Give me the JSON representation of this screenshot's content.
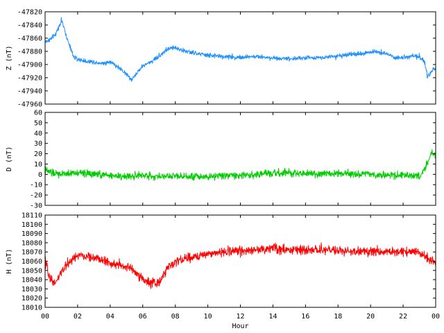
{
  "chart_data": [
    {
      "type": "line",
      "panel": "Z",
      "ylabel": "Z (nT)",
      "xlabel": "",
      "ylim": [
        -47960,
        -47820
      ],
      "yticks": [
        -47820,
        -47840,
        -47860,
        -47880,
        -47900,
        -47920,
        -47940,
        -47960
      ],
      "xlim": [
        0,
        24
      ],
      "xticks": [
        "00",
        "02",
        "04",
        "06",
        "08",
        "10",
        "12",
        "14",
        "16",
        "18",
        "20",
        "22",
        "00"
      ],
      "grid": false,
      "series": [
        {
          "color": "#1e90ff",
          "x": [
            0,
            0.3,
            0.6,
            0.9,
            1.0,
            1.2,
            1.5,
            1.8,
            2.0,
            2.5,
            3.0,
            3.5,
            4.0,
            4.5,
            5.0,
            5.3,
            5.5,
            5.8,
            6.0,
            6.5,
            7.0,
            7.5,
            8.0,
            8.5,
            9.0,
            9.5,
            10.0,
            11.0,
            12.0,
            13.0,
            14.0,
            15.0,
            16.0,
            17.0,
            18.0,
            19.0,
            20.0,
            20.5,
            21.0,
            21.5,
            22.0,
            22.5,
            23.0,
            23.3,
            23.5,
            23.7,
            24.0
          ],
          "values": [
            -47866,
            -47862,
            -47856,
            -47840,
            -47832,
            -47848,
            -47872,
            -47890,
            -47892,
            -47895,
            -47896,
            -47898,
            -47896,
            -47904,
            -47914,
            -47924,
            -47917,
            -47908,
            -47902,
            -47896,
            -47887,
            -47877,
            -47874,
            -47879,
            -47882,
            -47884,
            -47886,
            -47888,
            -47889,
            -47888,
            -47890,
            -47891,
            -47890,
            -47889,
            -47887,
            -47885,
            -47881,
            -47880,
            -47884,
            -47890,
            -47889,
            -47887,
            -47888,
            -47895,
            -47920,
            -47912,
            -47905
          ]
        }
      ]
    },
    {
      "type": "line",
      "panel": "D",
      "ylabel": "D (nT)",
      "xlabel": "",
      "ylim": [
        -30,
        60
      ],
      "yticks": [
        60,
        50,
        40,
        30,
        20,
        10,
        0,
        -10,
        -20,
        -30
      ],
      "xlim": [
        0,
        24
      ],
      "xticks": [
        "00",
        "02",
        "04",
        "06",
        "08",
        "10",
        "12",
        "14",
        "16",
        "18",
        "20",
        "22",
        "00"
      ],
      "grid": false,
      "series": [
        {
          "color": "#00cc00",
          "x": [
            0,
            0.5,
            1.0,
            2.0,
            3.0,
            4.0,
            5.0,
            6.0,
            7.0,
            8.0,
            9.0,
            10.0,
            11.0,
            12.0,
            13.0,
            14.0,
            15.0,
            16.0,
            17.0,
            18.0,
            19.0,
            20.0,
            21.0,
            22.0,
            23.0,
            23.3,
            23.6,
            23.8,
            24.0
          ],
          "values": [
            4,
            1,
            0,
            2,
            0,
            -1,
            -2,
            -1,
            -2,
            -1,
            -2,
            -2,
            -1,
            -1,
            0,
            1,
            1,
            1,
            0,
            1,
            0,
            0,
            -1,
            -1,
            -2,
            5,
            14,
            22,
            16
          ]
        }
      ]
    },
    {
      "type": "line",
      "panel": "H",
      "ylabel": "H (nT)",
      "xlabel": "Hour",
      "ylim": [
        18010,
        18110
      ],
      "yticks": [
        18110,
        18100,
        18090,
        18080,
        18070,
        18060,
        18050,
        18040,
        18030,
        18020,
        18010
      ],
      "xlim": [
        0,
        24
      ],
      "xticks": [
        "00",
        "02",
        "04",
        "06",
        "08",
        "10",
        "12",
        "14",
        "16",
        "18",
        "20",
        "22",
        "00"
      ],
      "grid": false,
      "series": [
        {
          "color": "#ff0000",
          "x": [
            0,
            0.3,
            0.6,
            1.0,
            1.5,
            2.0,
            3.0,
            4.0,
            5.0,
            5.5,
            6.0,
            6.5,
            7.0,
            7.5,
            8.0,
            9.0,
            10.0,
            11.0,
            12.0,
            13.0,
            14.0,
            15.0,
            16.0,
            17.0,
            18.0,
            19.0,
            20.0,
            21.0,
            22.0,
            23.0,
            23.5,
            24.0
          ],
          "values": [
            18060,
            18042,
            18036,
            18048,
            18060,
            18066,
            18064,
            18058,
            18054,
            18050,
            18040,
            18036,
            18036,
            18052,
            18060,
            18064,
            18068,
            18070,
            18072,
            18072,
            18074,
            18073,
            18071,
            18072,
            18071,
            18070,
            18071,
            18070,
            18070,
            18070,
            18062,
            18058
          ]
        }
      ]
    }
  ]
}
